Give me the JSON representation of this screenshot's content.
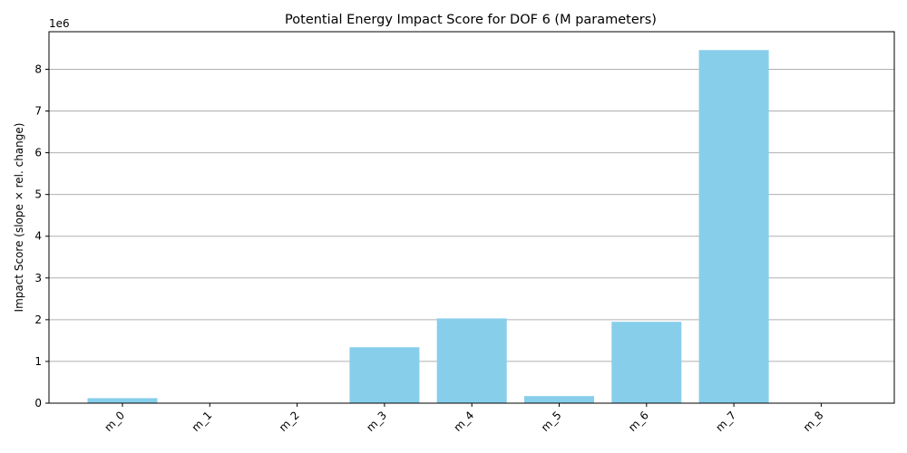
{
  "chart_data": {
    "type": "bar",
    "title": "Potential Energy Impact Score for DOF 6 (M parameters)",
    "xlabel": "",
    "ylabel": "Impact Score (slope × rel. change)",
    "y_scale_label": "1e6",
    "categories": [
      "m_0",
      "m_1",
      "m_2",
      "m_3",
      "m_4",
      "m_5",
      "m_6",
      "m_7",
      "m_8"
    ],
    "values": [
      120000,
      0,
      0,
      1340000,
      2030000,
      170000,
      1950000,
      8460000,
      0
    ],
    "ylim": [
      0,
      8900000
    ],
    "yticks": [
      0,
      1000000,
      2000000,
      3000000,
      4000000,
      5000000,
      6000000,
      7000000,
      8000000
    ],
    "ytick_labels": [
      "0",
      "1",
      "2",
      "3",
      "4",
      "5",
      "6",
      "7",
      "8"
    ],
    "grid": "y",
    "bar_color": "#87ceeb",
    "grid_color": "#b0b0b0",
    "legend": "none"
  }
}
